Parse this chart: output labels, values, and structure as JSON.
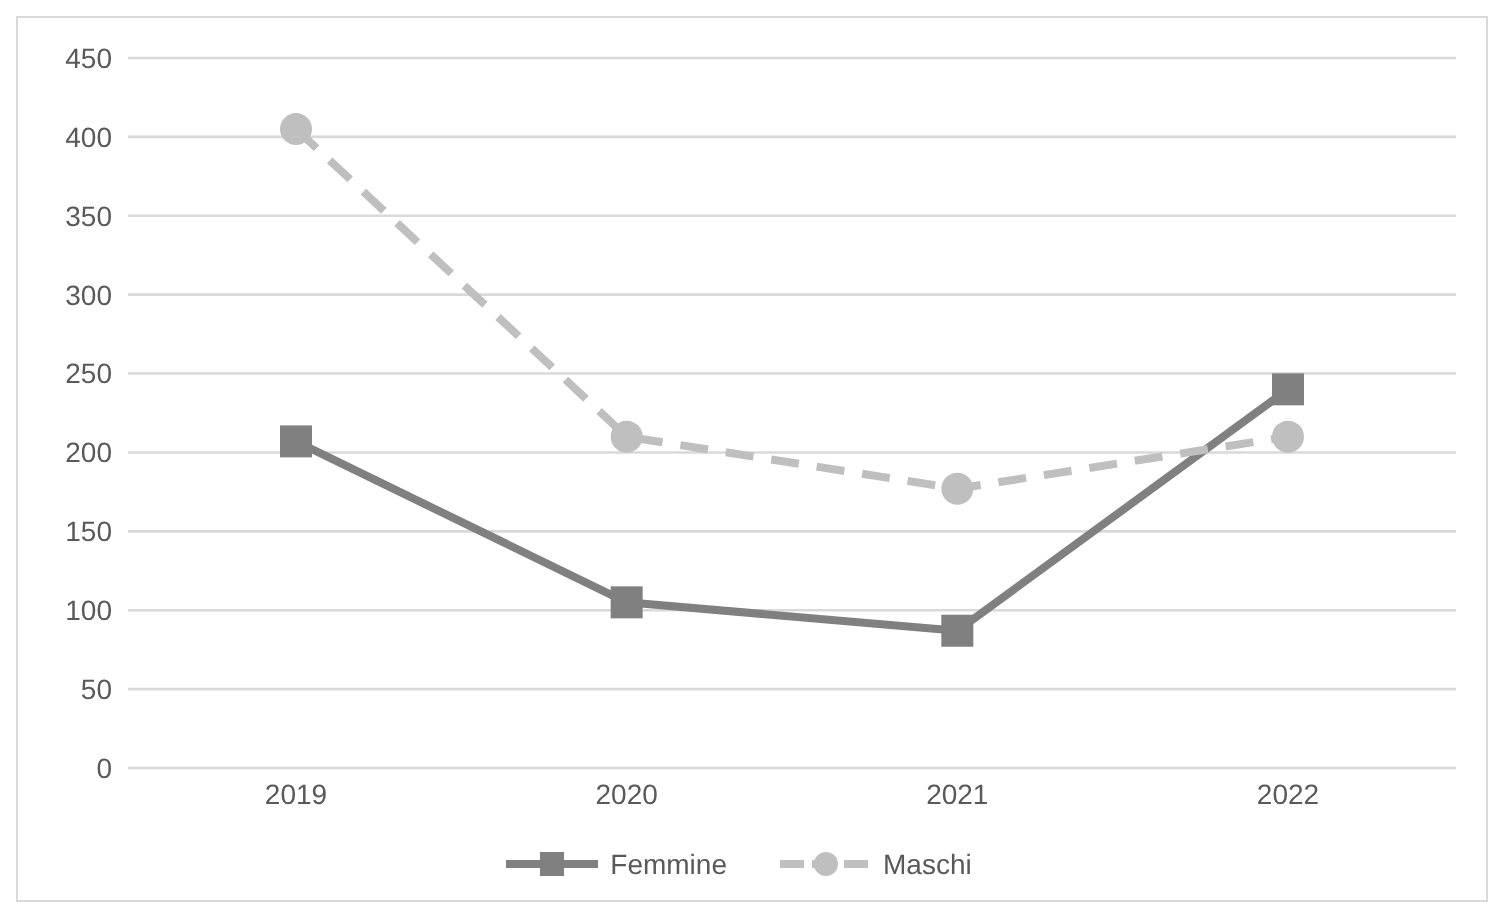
{
  "chart_data": {
    "type": "line",
    "categories": [
      "2019",
      "2020",
      "2021",
      "2022"
    ],
    "series": [
      {
        "name": "Femmine",
        "color": "#808080",
        "values": [
          207,
          105,
          87,
          240
        ],
        "marker": "square",
        "line_style": "solid"
      },
      {
        "name": "Maschi",
        "color": "#bfbfbf",
        "values": [
          405,
          210,
          177,
          210
        ],
        "marker": "circle",
        "line_style": "dashed"
      }
    ],
    "ylim": [
      0,
      450
    ],
    "yticks": [
      0,
      50,
      100,
      150,
      200,
      250,
      300,
      350,
      400,
      450
    ],
    "grid": "y",
    "legend": "bottom"
  }
}
